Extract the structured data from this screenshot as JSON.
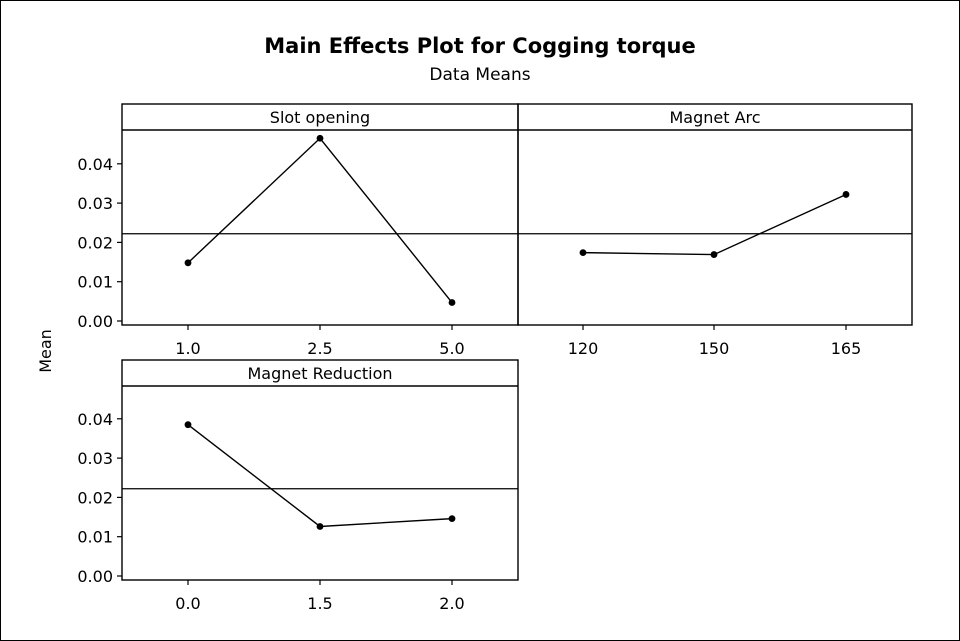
{
  "title": "Main Effects Plot for Cogging torque",
  "subtitle": "Data Means",
  "ylabel": "Mean",
  "chart_data": {
    "type": "line",
    "title": "Main Effects Plot for Cogging torque",
    "subtitle": "Data Means",
    "ylabel": "Mean",
    "ylim": [
      0.0,
      0.05
    ],
    "yticks": [
      "0.00",
      "0.01",
      "0.02",
      "0.03",
      "0.04"
    ],
    "grand_mean": 0.0222,
    "panels": [
      {
        "name": "Slot opening",
        "categories": [
          "1.0",
          "2.5",
          "5.0"
        ],
        "values": [
          0.0148,
          0.0465,
          0.0047
        ]
      },
      {
        "name": "Magnet Arc",
        "categories": [
          "120",
          "150",
          "165"
        ],
        "values": [
          0.0174,
          0.0169,
          0.0322
        ]
      },
      {
        "name": "Magnet Reduction",
        "categories": [
          "0.0",
          "1.5",
          "2.0"
        ],
        "values": [
          0.0385,
          0.0126,
          0.0146
        ]
      }
    ]
  }
}
